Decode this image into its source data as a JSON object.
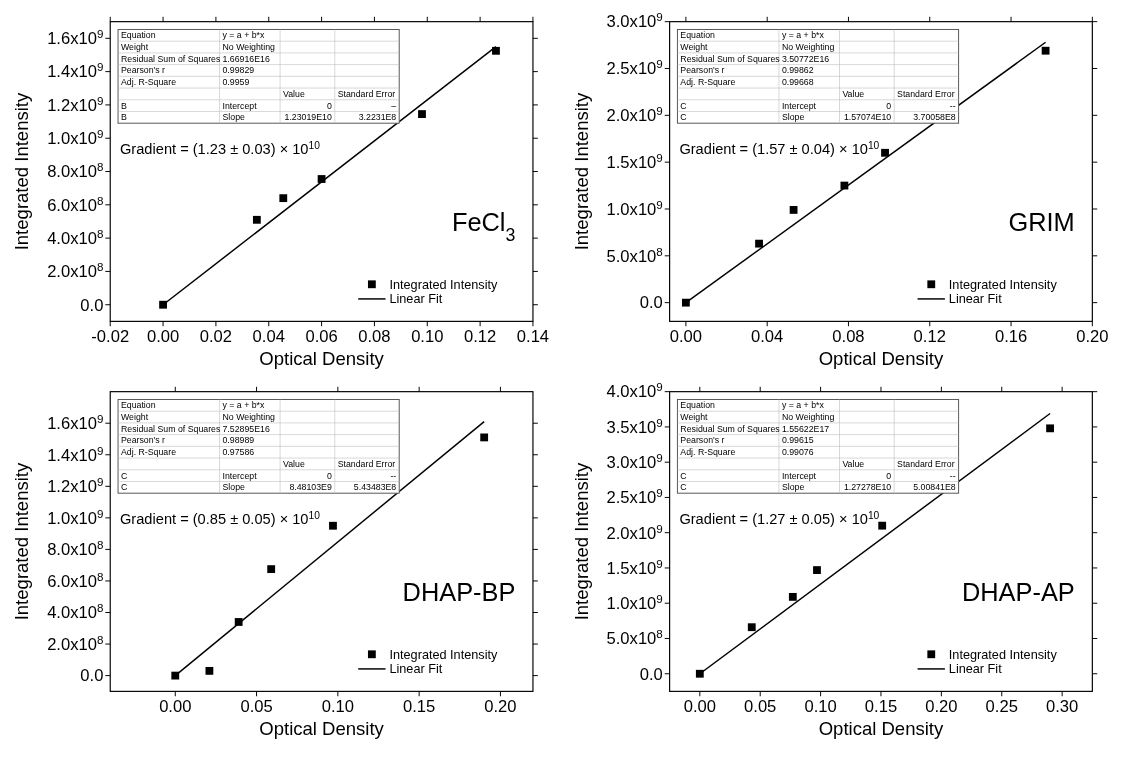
{
  "chart_data": [
    {
      "type": "scatter",
      "xlabel": "Optical Density",
      "ylabel": "Integrated Intensity",
      "legend": "bottom right",
      "grid": false,
      "xlim": [
        -0.02,
        0.14
      ],
      "xticks": [
        {
          "value": -0.02,
          "label": "-0.02"
        },
        {
          "value": 0,
          "label": "0.00"
        },
        {
          "value": 0.02,
          "label": "0.02"
        },
        {
          "value": 0.04,
          "label": "0.04"
        },
        {
          "value": 0.06,
          "label": "0.06"
        },
        {
          "value": 0.08,
          "label": "0.08"
        },
        {
          "value": 0.1,
          "label": "0.10"
        },
        {
          "value": 0.12,
          "label": "0.12"
        },
        {
          "value": 0.14,
          "label": "0.14"
        }
      ],
      "ylim": [
        -100000000,
        1700000000
      ],
      "yticks": [
        {
          "value": 0,
          "label": "0.0"
        },
        {
          "value": 200000000,
          "label": "2.0x10$^{8}$"
        },
        {
          "value": 400000000,
          "label": "4.0x10$^{8}$"
        },
        {
          "value": 600000000,
          "label": "6.0x10$^{8}$"
        },
        {
          "value": 800000000,
          "label": "8.0x10$^{8}$"
        },
        {
          "value": 1000000000,
          "label": "1.0x10$^{9}$"
        },
        {
          "value": 1200000000,
          "label": "1.2x10$^{9}$"
        },
        {
          "value": 1400000000,
          "label": "1.4x10$^{9}$"
        },
        {
          "value": 1600000000,
          "label": "1.6x10$^{9}$"
        }
      ],
      "series": [
        {
          "name": "Integrated Intensity",
          "marker": "square",
          "color": "#000000",
          "x": [
            0,
            0.0355,
            0.0455,
            0.06,
            0.098,
            0.126
          ],
          "values": [
            0,
            510000000,
            640000000,
            755000000,
            1145000000,
            1525000000
          ]
        },
        {
          "name": "Linear Fit",
          "type": "line",
          "marker": "none",
          "color": "#000000",
          "x": [
            0,
            0.126
          ],
          "values": [
            0,
            1550000000
          ]
        }
      ],
      "annotations": [
        "FeCl$_{3}$",
        "Gradient = (1.23 ± 0.03) × 10$^{10}$",
        "Equation",
        "y = a + b*x",
        "Weight",
        "No Weighting",
        "Residual Sum of Squares",
        "1.66916E16",
        "Pearson's r",
        "0.99829",
        "Adj. R-Square",
        "0.9959",
        "Value",
        "Standard Error",
        "B",
        "Intercept",
        "0",
        "–",
        "B",
        "Slope",
        "1.23019E10",
        "3.2231E8"
      ]
    },
    {
      "type": "scatter",
      "xlabel": "Optical Density",
      "ylabel": "Integrated Intensity",
      "legend": "bottom right",
      "grid": false,
      "xlim": [
        -0.008,
        0.2
      ],
      "xticks": [
        {
          "value": 0,
          "label": "0.00"
        },
        {
          "value": 0.04,
          "label": "0.04"
        },
        {
          "value": 0.08,
          "label": "0.08"
        },
        {
          "value": 0.12,
          "label": "0.12"
        },
        {
          "value": 0.16,
          "label": "0.16"
        },
        {
          "value": 0.2,
          "label": "0.20"
        }
      ],
      "ylim": [
        -200000000,
        3000000000
      ],
      "yticks": [
        {
          "value": 0,
          "label": "0.0"
        },
        {
          "value": 500000000,
          "label": "5.0x10$^{8}$"
        },
        {
          "value": 1000000000,
          "label": "1.0x10$^{9}$"
        },
        {
          "value": 1500000000,
          "label": "1.5x10$^{9}$"
        },
        {
          "value": 2000000000,
          "label": "2.0x10$^{9}$"
        },
        {
          "value": 2500000000,
          "label": "2.5x10$^{9}$"
        },
        {
          "value": 3000000000,
          "label": "3.0x10$^{9}$"
        }
      ],
      "series": [
        {
          "name": "Integrated Intensity",
          "marker": "square",
          "color": "#000000",
          "x": [
            0,
            0.036,
            0.053,
            0.078,
            0.098,
            0.177
          ],
          "values": [
            0,
            630000000,
            990000000,
            1250000000,
            1600000000,
            2690000000
          ]
        },
        {
          "name": "Linear Fit",
          "type": "line",
          "marker": "none",
          "color": "#000000",
          "x": [
            0,
            0.177
          ],
          "values": [
            0,
            2780000000
          ]
        }
      ],
      "annotations": [
        "GRIM",
        "Gradient = (1.57 ± 0.04) × 10$^{10}$",
        "Equation",
        "y = a + b*x",
        "Weight",
        "No Weighting",
        "Residual Sum of Squares",
        "3.50772E16",
        "Pearson's r",
        "0.99862",
        "Adj. R-Square",
        "0.99668",
        "Value",
        "Standard Error",
        "C",
        "Intercept",
        "0",
        "--",
        "C",
        "Slope",
        "1.57074E10",
        "3.70058E8"
      ]
    },
    {
      "type": "scatter",
      "xlabel": "Optical Density",
      "ylabel": "Integrated Intensity",
      "legend": "bottom right",
      "grid": false,
      "xlim": [
        -0.04,
        0.22
      ],
      "xticks": [
        {
          "value": 0,
          "label": "0.00"
        },
        {
          "value": 0.05,
          "label": "0.05"
        },
        {
          "value": 0.1,
          "label": "0.10"
        },
        {
          "value": 0.15,
          "label": "0.15"
        },
        {
          "value": 0.2,
          "label": "0.20"
        }
      ],
      "ylim": [
        -100000000,
        1800000000
      ],
      "yticks": [
        {
          "value": 0,
          "label": "0.0"
        },
        {
          "value": 200000000,
          "label": "2.0x10$^{8}$"
        },
        {
          "value": 400000000,
          "label": "4.0x10$^{8}$"
        },
        {
          "value": 600000000,
          "label": "6.0x10$^{8}$"
        },
        {
          "value": 800000000,
          "label": "8.0x10$^{8}$"
        },
        {
          "value": 1000000000,
          "label": "1.0x10$^{9}$"
        },
        {
          "value": 1200000000,
          "label": "1.2x10$^{9}$"
        },
        {
          "value": 1400000000,
          "label": "1.4x10$^{9}$"
        },
        {
          "value": 1600000000,
          "label": "1.6x10$^{9}$"
        }
      ],
      "series": [
        {
          "name": "Integrated Intensity",
          "marker": "square",
          "color": "#000000",
          "x": [
            0,
            0.021,
            0.039,
            0.059,
            0.097,
            0.19
          ],
          "values": [
            0,
            30000000,
            340000000,
            675000000,
            950000000,
            1510000000
          ]
        },
        {
          "name": "Linear Fit",
          "type": "line",
          "marker": "none",
          "color": "#000000",
          "x": [
            0,
            0.19
          ],
          "values": [
            0,
            1610000000
          ]
        }
      ],
      "annotations": [
        "DHAP-BP",
        "Gradient = (0.85 ± 0.05) × 10$^{10}$",
        "Equation",
        "y = a + b*x",
        "Weight",
        "No Weighting",
        "Residual Sum of Squares",
        "7.52895E16",
        "Pearson's r",
        "0.98989",
        "Adj. R-Square",
        "0.97586",
        "Value",
        "Standard Error",
        "C",
        "Intercept",
        "0",
        "--",
        "C",
        "Slope",
        "8.48103E9",
        "5.43483E8"
      ]
    },
    {
      "type": "scatter",
      "xlabel": "Optical Density",
      "ylabel": "Integrated Intensity",
      "legend": "bottom right",
      "grid": false,
      "xlim": [
        -0.025,
        0.325
      ],
      "xticks": [
        {
          "value": 0,
          "label": "0.00"
        },
        {
          "value": 0.05,
          "label": "0.05"
        },
        {
          "value": 0.1,
          "label": "0.10"
        },
        {
          "value": 0.15,
          "label": "0.15"
        },
        {
          "value": 0.2,
          "label": "0.20"
        },
        {
          "value": 0.25,
          "label": "0.25"
        },
        {
          "value": 0.3,
          "label": "0.30"
        }
      ],
      "ylim": [
        -250000000,
        4000000000
      ],
      "yticks": [
        {
          "value": 0,
          "label": "0.0"
        },
        {
          "value": 500000000,
          "label": "5.0x10$^{8}$"
        },
        {
          "value": 1000000000,
          "label": "1.0x10$^{9}$"
        },
        {
          "value": 1500000000,
          "label": "1.5x10$^{9}$"
        },
        {
          "value": 2000000000,
          "label": "2.0x10$^{9}$"
        },
        {
          "value": 2500000000,
          "label": "2.5x10$^{9}$"
        },
        {
          "value": 3000000000,
          "label": "3.0x10$^{9}$"
        },
        {
          "value": 3500000000,
          "label": "3.5x10$^{9}$"
        },
        {
          "value": 4000000000,
          "label": "4.0x10$^{9}$"
        }
      ],
      "series": [
        {
          "name": "Integrated Intensity",
          "marker": "square",
          "color": "#000000",
          "x": [
            0,
            0.043,
            0.077,
            0.097,
            0.151,
            0.29
          ],
          "values": [
            0,
            660000000,
            1090000000,
            1470000000,
            2100000000,
            3480000000
          ]
        },
        {
          "name": "Linear Fit",
          "type": "line",
          "marker": "none",
          "color": "#000000",
          "x": [
            0,
            0.29
          ],
          "values": [
            0,
            3690000000
          ]
        }
      ],
      "annotations": [
        "DHAP-AP",
        "Gradient = (1.27 ± 0.05) × 10$^{10}$",
        "Equation",
        "y = a + b*x",
        "Weight",
        "No Weighting",
        "Residual Sum of Squares",
        "1.55622E17",
        "Pearson's r",
        "0.99615",
        "Adj. R-Square",
        "0.99076",
        "Value",
        "Standard Error",
        "C",
        "Intercept",
        "0",
        "--",
        "C",
        "Slope",
        "1.27278E10",
        "5.00841E8"
      ]
    }
  ]
}
